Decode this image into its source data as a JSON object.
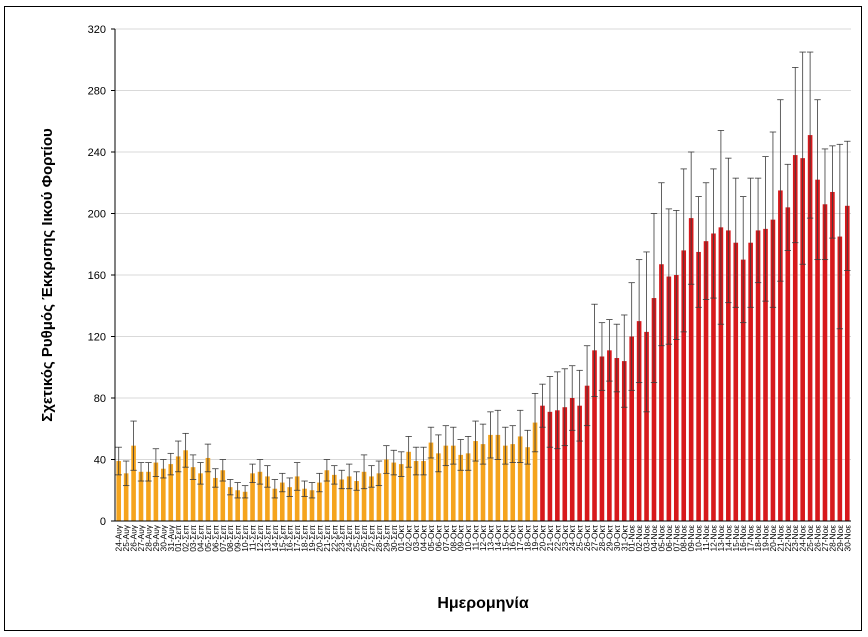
{
  "chart_data": {
    "type": "bar",
    "title": "",
    "xlabel": "Ημερομηνία",
    "ylabel": "Σχετικός Ρυθμός Έκκρισης Ιικού Φορτίου",
    "ylim": [
      0,
      320
    ],
    "yticks": [
      0,
      40,
      80,
      120,
      160,
      200,
      240,
      280,
      320
    ],
    "grid": true,
    "colors": {
      "phase1": "#f5a41d",
      "phase2": "#d7191c",
      "error_bar": "#000000",
      "grid": "#d9d9d9"
    },
    "categories": [
      "24-Αυγ",
      "25-Αυγ",
      "26-Αυγ",
      "27-Αυγ",
      "28-Αυγ",
      "29-Αυγ",
      "30-Αυγ",
      "31-Αυγ",
      "01-Σεπ",
      "02-Σεπ",
      "03-Σεπ",
      "04-Σεπ",
      "05-Σεπ",
      "06-Σεπ",
      "07-Σεπ",
      "08-Σεπ",
      "09-Σεπ",
      "10-Σεπ",
      "11-Σεπ",
      "12-Σεπ",
      "13-Σεπ",
      "14-Σεπ",
      "15-Σεπ",
      "16-Σεπ",
      "17-Σεπ",
      "18-Σεπ",
      "19-Σεπ",
      "20-Σεπ",
      "21-Σεπ",
      "22-Σεπ",
      "23-Σεπ",
      "24-Σεπ",
      "25-Σεπ",
      "26-Σεπ",
      "27-Σεπ",
      "28-Σεπ",
      "29-Σεπ",
      "30-Σεπ",
      "01-Οκτ",
      "02-Οκτ",
      "03-Οκτ",
      "04-Οκτ",
      "05-Οκτ",
      "06-Οκτ",
      "07-Οκτ",
      "08-Οκτ",
      "09-Οκτ",
      "10-Οκτ",
      "11-Οκτ",
      "12-Οκτ",
      "13-Οκτ",
      "14-Οκτ",
      "15-Οκτ",
      "16-Οκτ",
      "17-Οκτ",
      "18-Οκτ",
      "19-Οκτ",
      "20-Οκτ",
      "21-Οκτ",
      "22-Οκτ",
      "23-Οκτ",
      "24-Οκτ",
      "25-Οκτ",
      "26-Οκτ",
      "27-Οκτ",
      "28-Οκτ",
      "29-Οκτ",
      "30-Οκτ",
      "31-Οκτ",
      "01-Νοε",
      "02-Νοε",
      "03-Νοε",
      "04-Νοε",
      "05-Νοε",
      "06-Νοε",
      "07-Νοε",
      "08-Νοε",
      "09-Νοε",
      "10-Νοε",
      "11-Νοε",
      "12-Νοε",
      "13-Νοε",
      "14-Νοε",
      "15-Νοε",
      "16-Νοε",
      "17-Νοε",
      "18-Νοε",
      "19-Νοε",
      "20-Νοε",
      "21-Νοε",
      "22-Νοε",
      "23-Νοε",
      "24-Νοε",
      "25-Νοε",
      "26-Νοε",
      "27-Νοε",
      "28-Νοε",
      "29-Νοε",
      "30-Νοε"
    ],
    "phase_split_index": 57,
    "values": [
      39,
      31,
      49,
      32,
      32,
      38,
      34,
      37,
      42,
      46,
      35,
      31,
      41,
      28,
      33,
      22,
      20,
      19,
      31,
      32,
      29,
      21,
      25,
      22,
      29,
      21,
      20,
      25,
      33,
      30,
      27,
      29,
      26,
      32,
      29,
      31,
      40,
      38,
      37,
      45,
      39,
      39,
      51,
      44,
      49,
      49,
      43,
      44,
      52,
      50,
      56,
      56,
      49,
      50,
      55,
      48,
      64,
      75,
      71,
      72,
      74,
      80,
      75,
      88,
      111,
      107,
      111,
      106,
      104,
      120,
      130,
      123,
      145,
      167,
      159,
      160,
      176,
      197,
      175,
      182,
      187,
      191,
      189,
      181,
      170,
      181,
      189,
      190,
      196,
      215,
      204,
      238,
      236,
      251,
      222,
      206,
      214,
      185,
      205
    ],
    "error": [
      9,
      8,
      16,
      6,
      6,
      9,
      6,
      7,
      10,
      11,
      8,
      7,
      9,
      6,
      7,
      5,
      5,
      4,
      6,
      8,
      7,
      6,
      6,
      6,
      9,
      5,
      5,
      6,
      7,
      6,
      6,
      8,
      6,
      11,
      7,
      8,
      9,
      8,
      8,
      10,
      9,
      9,
      10,
      12,
      13,
      12,
      10,
      11,
      13,
      13,
      15,
      16,
      12,
      12,
      17,
      11,
      19,
      14,
      23,
      25,
      25,
      21,
      23,
      26,
      30,
      22,
      20,
      22,
      30,
      35,
      40,
      52,
      55,
      53,
      44,
      42,
      53,
      43,
      36,
      38,
      42,
      63,
      47,
      42,
      41,
      42,
      34,
      47,
      57,
      59,
      28,
      57,
      69,
      54,
      52,
      36,
      30,
      60,
      42
    ]
  }
}
